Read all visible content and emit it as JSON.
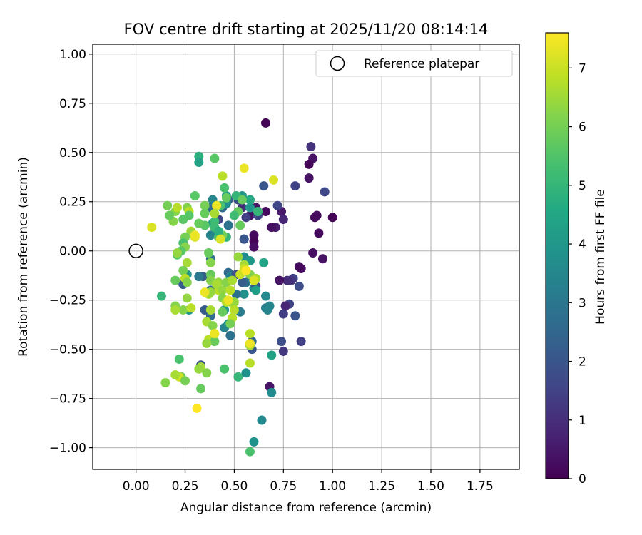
{
  "chart_data": {
    "type": "scatter",
    "title": "FOV centre drift starting at 2025/11/20 08:14:14",
    "xlabel": "Angular distance from reference (arcmin)",
    "ylabel": "Rotation from reference (arcmin)",
    "xlim": [
      -0.22,
      1.95
    ],
    "ylim": [
      -1.11,
      1.05
    ],
    "xticks": [
      0.0,
      0.25,
      0.5,
      0.75,
      1.0,
      1.25,
      1.5,
      1.75
    ],
    "yticks": [
      -1.0,
      -0.75,
      -0.5,
      -0.25,
      0.0,
      0.25,
      0.5,
      0.75,
      1.0
    ],
    "xtick_labels": [
      "0.00",
      "0.25",
      "0.50",
      "0.75",
      "1.00",
      "1.25",
      "1.50",
      "1.75"
    ],
    "ytick_labels": [
      "−1.00",
      "−0.75",
      "−0.50",
      "−0.25",
      "0.00",
      "0.25",
      "0.50",
      "0.75",
      "1.00"
    ],
    "grid": true,
    "legend": {
      "placement": "top-right",
      "entries": [
        "Reference platepar"
      ]
    },
    "colorbar": {
      "label": "Hours from first FF file",
      "range": [
        0,
        7.6
      ],
      "ticks": [
        0,
        1,
        2,
        3,
        4,
        5,
        6,
        7
      ],
      "tick_labels": [
        "0",
        "1",
        "2",
        "3",
        "4",
        "5",
        "6",
        "7"
      ],
      "colormap": "viridis"
    },
    "reference": {
      "x": 0.0,
      "y": 0.0
    },
    "points": [
      [
        0.66,
        0.65,
        0.1
      ],
      [
        0.89,
        0.53,
        1.1
      ],
      [
        0.9,
        0.47,
        0.4
      ],
      [
        0.88,
        0.44,
        0.1
      ],
      [
        0.88,
        0.37,
        0.4
      ],
      [
        0.81,
        0.33,
        1.5
      ],
      [
        0.96,
        0.3,
        1.6
      ],
      [
        1.0,
        0.17,
        0.1
      ],
      [
        0.92,
        0.18,
        0.3
      ],
      [
        0.91,
        0.17,
        0.2
      ],
      [
        0.93,
        0.09,
        0.2
      ],
      [
        0.9,
        -0.01,
        0.3
      ],
      [
        0.95,
        -0.04,
        0.4
      ],
      [
        0.83,
        -0.08,
        0.3
      ],
      [
        0.84,
        -0.09,
        0.2
      ],
      [
        0.8,
        -0.14,
        1.5
      ],
      [
        0.79,
        -0.15,
        1.2
      ],
      [
        0.83,
        -0.18,
        1.8
      ],
      [
        0.77,
        -0.15,
        1.0
      ],
      [
        0.73,
        -0.15,
        0.4
      ],
      [
        0.74,
        0.2,
        0.5
      ],
      [
        0.75,
        0.16,
        0.8
      ],
      [
        0.71,
        0.12,
        0.6
      ],
      [
        0.69,
        0.12,
        0.3
      ],
      [
        0.66,
        0.2,
        0.2
      ],
      [
        0.61,
        0.22,
        0.4
      ],
      [
        0.58,
        0.22,
        0.6
      ],
      [
        0.58,
        0.18,
        0.3
      ],
      [
        0.6,
        0.08,
        0.2
      ],
      [
        0.6,
        0.05,
        0.1
      ],
      [
        0.6,
        0.02,
        0.3
      ],
      [
        0.78,
        -0.27,
        1.5
      ],
      [
        0.76,
        -0.28,
        0.8
      ],
      [
        0.75,
        -0.32,
        1.4
      ],
      [
        0.81,
        -0.33,
        2.0
      ],
      [
        0.84,
        -0.46,
        1.4
      ],
      [
        0.74,
        -0.46,
        1.8
      ],
      [
        0.75,
        -0.51,
        1.2
      ],
      [
        0.68,
        -0.69,
        0.4
      ],
      [
        0.72,
        0.23,
        1.6
      ],
      [
        0.65,
        0.33,
        2.0
      ],
      [
        0.62,
        0.18,
        1.6
      ],
      [
        0.56,
        0.17,
        1.4
      ],
      [
        0.54,
        0.22,
        1.0
      ],
      [
        0.52,
        0.26,
        1.8
      ],
      [
        0.47,
        0.26,
        2.4
      ],
      [
        0.44,
        0.22,
        2.6
      ],
      [
        0.42,
        0.16,
        1.6
      ],
      [
        0.47,
        0.13,
        2.9
      ],
      [
        0.55,
        0.06,
        2.6
      ],
      [
        0.55,
        0.06,
        2.0
      ],
      [
        0.56,
        -0.16,
        2.8
      ],
      [
        0.6,
        -0.19,
        3.5
      ],
      [
        0.55,
        -0.22,
        3.8
      ],
      [
        0.61,
        -0.18,
        1.8
      ],
      [
        0.47,
        -0.11,
        2.6
      ],
      [
        0.48,
        -0.13,
        3.3
      ],
      [
        0.51,
        -0.12,
        1.8
      ],
      [
        0.54,
        -0.16,
        2.2
      ],
      [
        0.66,
        -0.23,
        3.6
      ],
      [
        0.66,
        -0.29,
        3.2
      ],
      [
        0.67,
        -0.3,
        3.5
      ],
      [
        0.68,
        -0.28,
        3.4
      ],
      [
        0.69,
        -0.53,
        4.4
      ],
      [
        0.58,
        -0.48,
        3.2
      ],
      [
        0.59,
        -0.5,
        2.0
      ],
      [
        0.59,
        -0.46,
        2.6
      ],
      [
        0.52,
        -0.64,
        5.0
      ],
      [
        0.56,
        -0.62,
        3.8
      ],
      [
        0.69,
        -0.72,
        3.6
      ],
      [
        0.64,
        -0.86,
        3.6
      ],
      [
        0.6,
        -0.97,
        3.8
      ],
      [
        0.58,
        -1.02,
        5.4
      ],
      [
        0.33,
        -0.58,
        2.0
      ],
      [
        0.27,
        -0.3,
        4.0
      ],
      [
        0.35,
        -0.3,
        2.2
      ],
      [
        0.38,
        -0.33,
        2.6
      ],
      [
        0.45,
        -0.39,
        3.4
      ],
      [
        0.48,
        -0.43,
        2.8
      ],
      [
        0.47,
        -0.37,
        3.8
      ],
      [
        0.37,
        -0.21,
        3.0
      ],
      [
        0.38,
        -0.2,
        2.6
      ],
      [
        0.34,
        -0.13,
        2.2
      ],
      [
        0.32,
        -0.13,
        3.0
      ],
      [
        0.38,
        -0.04,
        2.8
      ],
      [
        0.38,
        0.08,
        3.4
      ],
      [
        0.39,
        0.14,
        4.2
      ],
      [
        0.38,
        0.22,
        2.6
      ],
      [
        0.39,
        0.26,
        3.4
      ],
      [
        0.24,
        -0.17,
        2.2
      ],
      [
        0.26,
        -0.12,
        4.0
      ],
      [
        0.45,
        -0.3,
        4.0
      ],
      [
        0.53,
        -0.31,
        3.2
      ],
      [
        0.51,
        -0.22,
        2.8
      ],
      [
        0.61,
        -0.2,
        4.2
      ],
      [
        0.55,
        -0.03,
        3.6
      ],
      [
        0.58,
        -0.05,
        4.0
      ],
      [
        0.65,
        -0.06,
        4.4
      ],
      [
        0.58,
        0.22,
        4.0
      ],
      [
        0.62,
        0.2,
        4.4
      ],
      [
        0.54,
        0.28,
        4.0
      ],
      [
        0.51,
        0.28,
        5.0
      ],
      [
        0.58,
        0.26,
        4.6
      ],
      [
        0.62,
        0.2,
        5.0
      ],
      [
        0.46,
        0.28,
        4.0
      ],
      [
        0.46,
        0.24,
        3.8
      ],
      [
        0.32,
        0.48,
        4.8
      ],
      [
        0.32,
        0.45,
        4.4
      ],
      [
        0.4,
        0.47,
        5.6
      ],
      [
        0.44,
        0.38,
        6.8
      ],
      [
        0.45,
        0.32,
        5.4
      ],
      [
        0.46,
        0.27,
        5.8
      ],
      [
        0.54,
        0.26,
        5.8
      ],
      [
        0.43,
        0.23,
        5.4
      ],
      [
        0.52,
        0.2,
        5.8
      ],
      [
        0.5,
        0.18,
        5.2
      ],
      [
        0.53,
        0.13,
        5.8
      ],
      [
        0.46,
        0.07,
        5.0
      ],
      [
        0.42,
        0.07,
        5.4
      ],
      [
        0.44,
        0.08,
        6.0
      ],
      [
        0.4,
        0.15,
        5.2
      ],
      [
        0.4,
        0.12,
        5.2
      ],
      [
        0.42,
        0.1,
        4.8
      ],
      [
        0.35,
        0.13,
        5.6
      ],
      [
        0.35,
        0.23,
        6.0
      ],
      [
        0.3,
        0.28,
        5.6
      ],
      [
        0.32,
        0.14,
        5.8
      ],
      [
        0.35,
        0.19,
        5.8
      ],
      [
        0.26,
        0.22,
        6.2
      ],
      [
        0.27,
        0.2,
        6.8
      ],
      [
        0.27,
        0.18,
        5.6
      ],
      [
        0.24,
        0.16,
        5.6
      ],
      [
        0.2,
        0.2,
        6.2
      ],
      [
        0.19,
        0.15,
        6.2
      ],
      [
        0.17,
        0.18,
        5.8
      ],
      [
        0.16,
        0.23,
        6.0
      ],
      [
        0.21,
        0.22,
        6.8
      ],
      [
        0.08,
        0.12,
        7.2
      ],
      [
        0.28,
        0.1,
        6.6
      ],
      [
        0.28,
        0.09,
        6.4
      ],
      [
        0.3,
        0.07,
        7.2
      ],
      [
        0.25,
        0.07,
        6.0
      ],
      [
        0.24,
        0.04,
        5.4
      ],
      [
        0.25,
        0.02,
        6.2
      ],
      [
        0.23,
        0.0,
        5.6
      ],
      [
        0.21,
        -0.02,
        5.6
      ],
      [
        0.21,
        -0.01,
        6.4
      ],
      [
        0.26,
        -0.06,
        6.6
      ],
      [
        0.24,
        -0.1,
        6.0
      ],
      [
        0.25,
        -0.14,
        6.8
      ],
      [
        0.2,
        -0.15,
        5.8
      ],
      [
        0.26,
        -0.16,
        6.2
      ],
      [
        0.26,
        -0.24,
        6.4
      ],
      [
        0.2,
        -0.28,
        6.2
      ],
      [
        0.24,
        -0.3,
        6.2
      ],
      [
        0.2,
        -0.3,
        6.6
      ],
      [
        0.28,
        -0.29,
        6.8
      ],
      [
        0.13,
        -0.23,
        5.0
      ],
      [
        0.37,
        -0.01,
        5.8
      ],
      [
        0.38,
        -0.06,
        6.2
      ],
      [
        0.38,
        -0.12,
        5.8
      ],
      [
        0.38,
        -0.15,
        6.2
      ],
      [
        0.42,
        -0.16,
        6.4
      ],
      [
        0.42,
        -0.2,
        6.8
      ],
      [
        0.37,
        -0.22,
        6.6
      ],
      [
        0.38,
        -0.21,
        6.4
      ],
      [
        0.41,
        -0.17,
        6.6
      ],
      [
        0.44,
        -0.2,
        6.4
      ],
      [
        0.44,
        -0.24,
        6.2
      ],
      [
        0.46,
        -0.26,
        6.8
      ],
      [
        0.46,
        -0.16,
        6.2
      ],
      [
        0.49,
        -0.15,
        6.6
      ],
      [
        0.48,
        -0.2,
        6.8
      ],
      [
        0.48,
        -0.26,
        6.6
      ],
      [
        0.44,
        -0.31,
        5.8
      ],
      [
        0.38,
        -0.3,
        6.6
      ],
      [
        0.36,
        -0.36,
        6.6
      ],
      [
        0.39,
        -0.38,
        6.2
      ],
      [
        0.37,
        -0.45,
        6.8
      ],
      [
        0.4,
        -0.46,
        5.8
      ],
      [
        0.36,
        -0.47,
        6.4
      ],
      [
        0.5,
        -0.26,
        6.4
      ],
      [
        0.5,
        -0.3,
        6.8
      ],
      [
        0.49,
        -0.34,
        6.8
      ],
      [
        0.48,
        -0.37,
        6.0
      ],
      [
        0.58,
        -0.42,
        6.8
      ],
      [
        0.58,
        -0.48,
        6.6
      ],
      [
        0.58,
        -0.57,
        6.8
      ],
      [
        0.45,
        -0.6,
        5.4
      ],
      [
        0.33,
        -0.59,
        6.6
      ],
      [
        0.32,
        -0.6,
        6.4
      ],
      [
        0.36,
        -0.62,
        6.2
      ],
      [
        0.22,
        -0.55,
        5.4
      ],
      [
        0.23,
        -0.64,
        5.8
      ],
      [
        0.22,
        -0.64,
        7.0
      ],
      [
        0.25,
        -0.66,
        6.0
      ],
      [
        0.15,
        -0.67,
        6.2
      ],
      [
        0.2,
        -0.63,
        6.6
      ],
      [
        0.33,
        -0.7,
        5.8
      ],
      [
        0.31,
        -0.8,
        7.6
      ],
      [
        0.52,
        -0.03,
        6.4
      ],
      [
        0.53,
        -0.12,
        7.0
      ],
      [
        0.55,
        -0.07,
        6.6
      ],
      [
        0.58,
        -0.12,
        6.2
      ],
      [
        0.61,
        -0.14,
        6.6
      ],
      [
        0.6,
        -0.15,
        7.2
      ],
      [
        0.55,
        -0.09,
        7.0
      ],
      [
        0.56,
        -0.1,
        7.6
      ],
      [
        0.55,
        0.42,
        7.4
      ],
      [
        0.7,
        0.36,
        7.2
      ],
      [
        0.41,
        0.23,
        7.4
      ],
      [
        0.43,
        0.06,
        7.2
      ],
      [
        0.4,
        0.19,
        6.6
      ],
      [
        0.47,
        -0.25,
        7.4
      ],
      [
        0.4,
        -0.42,
        7.4
      ],
      [
        0.58,
        -0.47,
        7.4
      ],
      [
        0.3,
        0.08,
        7.4
      ],
      [
        0.35,
        -0.21,
        7.4
      ]
    ]
  }
}
